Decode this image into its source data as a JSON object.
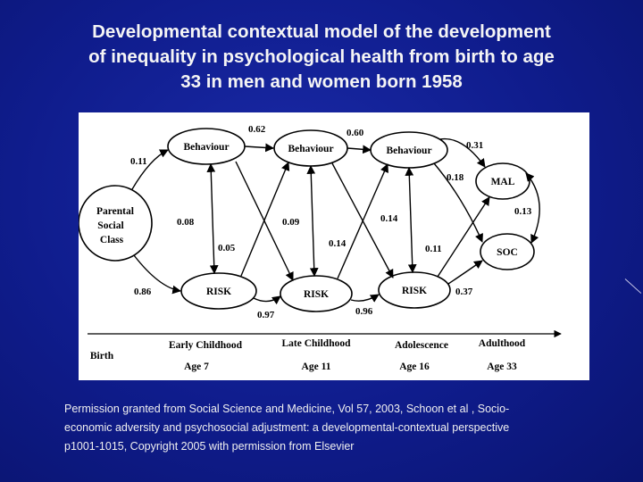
{
  "title": {
    "line1": "Developmental contextual model of the development",
    "line2": "of inequality in psychological health from birth to age",
    "line3": "33 in men and women born 1958"
  },
  "diagram": {
    "nodes": {
      "parental_class": [
        "Parental",
        "Social",
        "Class"
      ],
      "behaviour_1": "Behaviour",
      "behaviour_2": "Behaviour",
      "behaviour_3": "Behaviour",
      "risk_1": "RISK",
      "risk_2": "RISK",
      "risk_3": "RISK",
      "mal": "MAL",
      "soc": "SOC"
    },
    "coefficients": {
      "class_to_behaviour": "0.11",
      "class_to_risk": "0.86",
      "behaviour1_to_behaviour2": "0.62",
      "behaviour2_to_behaviour3": "0.60",
      "behaviour3_to_mal": "0.31",
      "behaviour3_to_soc": "0.18",
      "mal_soc": "0.13",
      "behaviour1_risk1": "0.08",
      "risk1_to_behaviour2": "0.05",
      "behaviour2_risk2": "0.09",
      "risk2_to_behaviour3": "0.14",
      "behaviour3_risk3": "0.14",
      "risk3_to_mal": "0.11",
      "risk3_to_soc": "0.37",
      "risk1_to_risk2": "0.97",
      "risk2_to_risk3": "0.96"
    },
    "timeline": {
      "birth": "Birth",
      "stages": [
        {
          "label": "Early Childhood",
          "age": "Age 7"
        },
        {
          "label": "Late Childhood",
          "age": "Age 11"
        },
        {
          "label": "Adolescence",
          "age": "Age 16"
        },
        {
          "label": "Adulthood",
          "age": "Age 33"
        }
      ]
    }
  },
  "caption": {
    "line1": "Permission granted from Social Science and Medicine, Vol 57, 2003, Schoon et al , Socio-",
    "line2": "economic adversity and psychosocial adjustment: a developmental-contextual perspective",
    "line3": "p1001-1015, Copyright 2005 with permission from Elsevier"
  }
}
